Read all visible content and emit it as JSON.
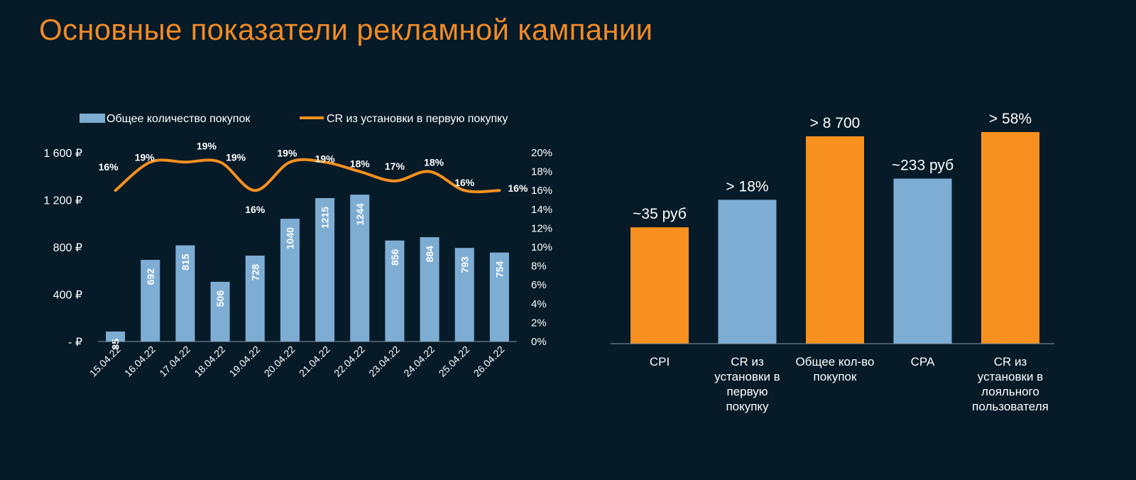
{
  "title": "Основные показатели рекламной кампании",
  "colors": {
    "background": "#061a28",
    "accent_orange": "#f7901e",
    "bar_blue": "#7eadd4",
    "title": "#f08a24",
    "text": "#ffffff"
  },
  "chart_data": [
    {
      "type": "bar+line",
      "title": "",
      "legend": {
        "placement": "top",
        "entries": [
          "Общее количество покупок",
          "CR из установки в первую покупку"
        ]
      },
      "categories": [
        "15.04.22",
        "16.04.22",
        "17.04.22",
        "18.04.22",
        "19.04.22",
        "20.04.22",
        "21.04.22",
        "22.04.22",
        "23.04.22",
        "24.04.22",
        "25.04.22",
        "26.04.22"
      ],
      "series": [
        {
          "name": "Общее количество покупок",
          "kind": "bar",
          "axis": "left",
          "values": [
            85,
            692,
            815,
            506,
            728,
            1040,
            1215,
            1244,
            856,
            884,
            793,
            754
          ],
          "labels": [
            "85",
            "692",
            "815",
            "506",
            "728",
            "1040",
            "1215",
            "1244",
            "856",
            "884",
            "793",
            "754"
          ]
        },
        {
          "name": "CR из установки в первую покупку",
          "kind": "line",
          "axis": "right",
          "values": [
            0.16,
            0.19,
            0.19,
            0.19,
            0.16,
            0.19,
            0.19,
            0.18,
            0.17,
            0.18,
            0.16,
            0.16
          ],
          "labels": [
            "16%",
            "19%",
            "19%",
            "19%",
            "16%",
            "19%",
            "19%",
            "18%",
            "17%",
            "18%",
            "16%",
            "16%"
          ]
        }
      ],
      "y_left": {
        "range": [
          0,
          1600
        ],
        "ticks": [
          "- ₽",
          "400 ₽",
          "800 ₽",
          "1 200 ₽",
          "1 600 ₽"
        ],
        "tick_values": [
          0,
          400,
          800,
          1200,
          1600
        ]
      },
      "y_right": {
        "range": [
          0,
          0.2
        ],
        "ticks": [
          "0%",
          "2%",
          "4%",
          "6%",
          "8%",
          "10%",
          "12%",
          "14%",
          "16%",
          "18%",
          "20%"
        ],
        "tick_values": [
          0,
          0.02,
          0.04,
          0.06,
          0.08,
          0.1,
          0.12,
          0.14,
          0.16,
          0.18,
          0.2
        ]
      },
      "grid": false
    },
    {
      "type": "bar",
      "title": "",
      "categories": [
        "CPI",
        "CR из установки в первую покупку",
        "Общее кол-во покупок",
        "CPA",
        "CR из установки в лояльного пользователя"
      ],
      "category_lines": [
        [
          "CPI"
        ],
        [
          "CR из",
          "установки в",
          "первую",
          "покупку"
        ],
        [
          "Общее кол-во",
          "покупок"
        ],
        [
          "CPA"
        ],
        [
          "CR из",
          "установки в",
          "лояльного",
          "пользователя"
        ]
      ],
      "relative_heights": [
        0.55,
        0.68,
        0.98,
        0.78,
        1.0
      ],
      "labels": [
        "~35 руб",
        "> 18%",
        "> 8 700",
        "~233 руб",
        "> 58%"
      ],
      "colors": [
        "#f7901e",
        "#7eadd4",
        "#f7901e",
        "#7eadd4",
        "#f7901e"
      ],
      "axes": "none",
      "grid": false
    }
  ]
}
